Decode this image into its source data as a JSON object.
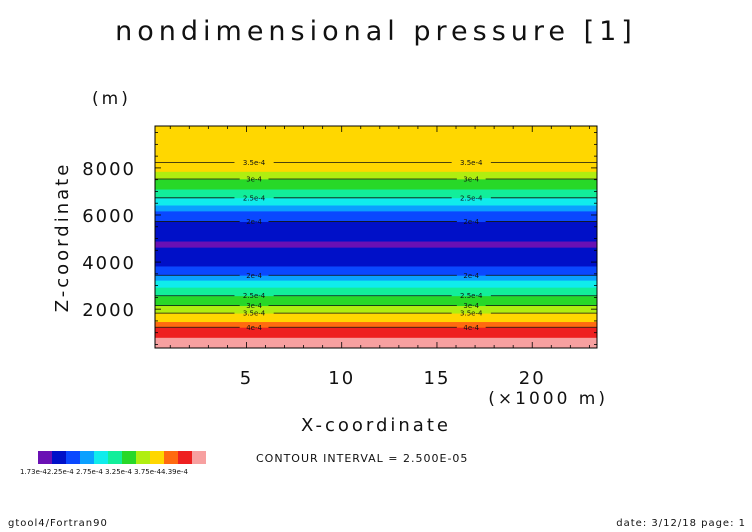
{
  "chart_data": {
    "type": "heatmap",
    "title": "nondimensional pressure [1]",
    "xlabel": "X-coordinate",
    "x_unit": "(×1000 m)",
    "ylabel": "Z-coordinate",
    "y_unit": "(m)",
    "xlim": [
      0.2,
      23.4
    ],
    "ylim": [
      350,
      9780
    ],
    "x_ticks": [
      5,
      10,
      15,
      20
    ],
    "y_ticks": [
      2000,
      4000,
      6000,
      8000
    ],
    "x_tick_labels": [
      "5",
      "10",
      "15",
      "20"
    ],
    "y_tick_labels": [
      "2000",
      "4000",
      "6000",
      "8000"
    ],
    "bands": [
      {
        "z0": 350,
        "z1": 800,
        "color": "#f7a0a0"
      },
      {
        "z0": 800,
        "z1": 1230,
        "color": "#ee2020"
      },
      {
        "z0": 1230,
        "z1": 1470,
        "color": "#ff6a10"
      },
      {
        "z0": 1470,
        "z1": 1830,
        "color": "#ffd700"
      },
      {
        "z0": 1830,
        "z1": 2150,
        "color": "#b0ee10"
      },
      {
        "z0": 2150,
        "z1": 2570,
        "color": "#28d828"
      },
      {
        "z0": 2570,
        "z1": 2930,
        "color": "#12ee9a"
      },
      {
        "z0": 2930,
        "z1": 3230,
        "color": "#10ecec"
      },
      {
        "z0": 3230,
        "z1": 3440,
        "color": "#0aa0ff"
      },
      {
        "z0": 3440,
        "z1": 3830,
        "color": "#0a48ff"
      },
      {
        "z0": 3830,
        "z1": 4630,
        "color": "#0010c8"
      },
      {
        "z0": 4630,
        "z1": 4890,
        "color": "#6a10b4"
      },
      {
        "z0": 4890,
        "z1": 5720,
        "color": "#0010c8"
      },
      {
        "z0": 5720,
        "z1": 6170,
        "color": "#0a48ff"
      },
      {
        "z0": 6170,
        "z1": 6420,
        "color": "#0aa0ff"
      },
      {
        "z0": 6420,
        "z1": 6730,
        "color": "#10ecec"
      },
      {
        "z0": 6730,
        "z1": 7100,
        "color": "#12ee9a"
      },
      {
        "z0": 7100,
        "z1": 7530,
        "color": "#28d828"
      },
      {
        "z0": 7530,
        "z1": 7850,
        "color": "#b0ee10"
      },
      {
        "z0": 7850,
        "z1": 8230,
        "color": "#ffd700"
      },
      {
        "z0": 8230,
        "z1": 9780,
        "color": "#ffd700"
      }
    ],
    "contour_lines": [
      {
        "z": 1230,
        "label": "4e-4"
      },
      {
        "z": 1830,
        "label": "3.5e-4"
      },
      {
        "z": 2150,
        "label": "3e-4"
      },
      {
        "z": 2570,
        "label": "2.5e-4"
      },
      {
        "z": 3440,
        "label": "2e-4"
      },
      {
        "z": 5720,
        "label": "2e-4"
      },
      {
        "z": 6730,
        "label": "2.5e-4"
      },
      {
        "z": 7530,
        "label": "3e-4"
      },
      {
        "z": 8230,
        "label": "3.5e-4"
      }
    ],
    "contour_label_x": [
      5.4,
      16.8
    ],
    "colorbar": {
      "colors": [
        "#6a10b4",
        "#0010c8",
        "#0a48ff",
        "#0aa0ff",
        "#10ecec",
        "#12ee9a",
        "#28d828",
        "#b0ee10",
        "#ffd700",
        "#ff6a10",
        "#ee2020",
        "#f7a0a0"
      ],
      "label_text": "1.73e-42.25e-4 2.75e-4 3.25e-4 3.75e-44.39e-4"
    },
    "contour_interval": "CONTOUR INTERVAL = 2.500E-05",
    "footer_left": "gtool4/Fortran90",
    "footer_right": "date: 3/12/18 page: 1"
  }
}
